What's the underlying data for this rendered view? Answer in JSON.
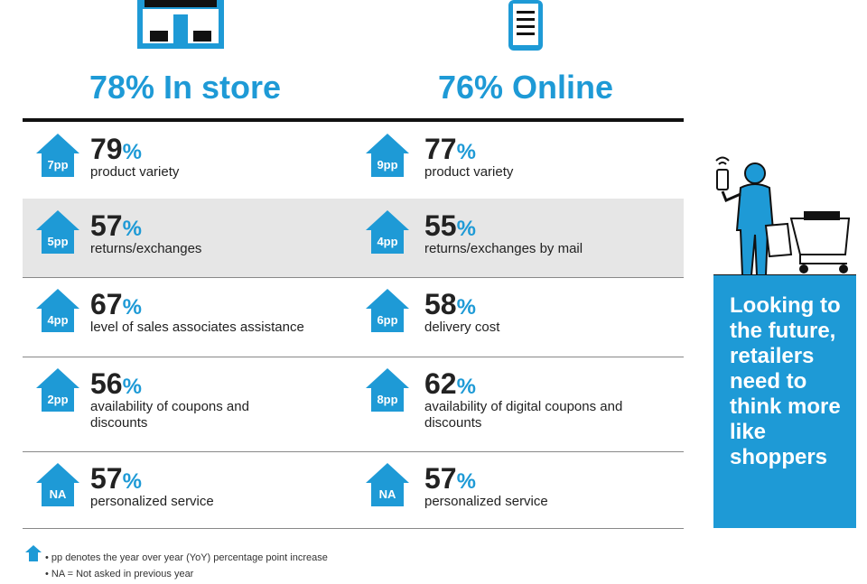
{
  "columns": [
    {
      "heading": "78% In store",
      "rows": [
        {
          "change": "7pp",
          "value": "79",
          "unit": "%",
          "label": "product variety"
        },
        {
          "change": "5pp",
          "value": "57",
          "unit": "%",
          "label": "returns/exchanges"
        },
        {
          "change": "4pp",
          "value": "67",
          "unit": "%",
          "label": "level of sales associates assistance"
        },
        {
          "change": "2pp",
          "value": "56",
          "unit": "%",
          "label": "availability of coupons and discounts"
        },
        {
          "change": "NA",
          "value": "57",
          "unit": "%",
          "label": "personalized service"
        }
      ]
    },
    {
      "heading": "76% Online",
      "rows": [
        {
          "change": "9pp",
          "value": "77",
          "unit": "%",
          "label": "product variety"
        },
        {
          "change": "4pp",
          "value": "55",
          "unit": "%",
          "label": "returns/exchanges by mail"
        },
        {
          "change": "6pp",
          "value": "58",
          "unit": "%",
          "label": "delivery cost"
        },
        {
          "change": "8pp",
          "value": "62",
          "unit": "%",
          "label": "availability of digital coupons and discounts"
        },
        {
          "change": "NA",
          "value": "57",
          "unit": "%",
          "label": "personalized service"
        }
      ]
    }
  ],
  "sidebar": {
    "text": "Looking to the future, retailers need to think more like shoppers"
  },
  "footnotes": [
    "• pp denotes the year over year (YoY) percentage point increase",
    "• NA = Not asked in previous year"
  ]
}
